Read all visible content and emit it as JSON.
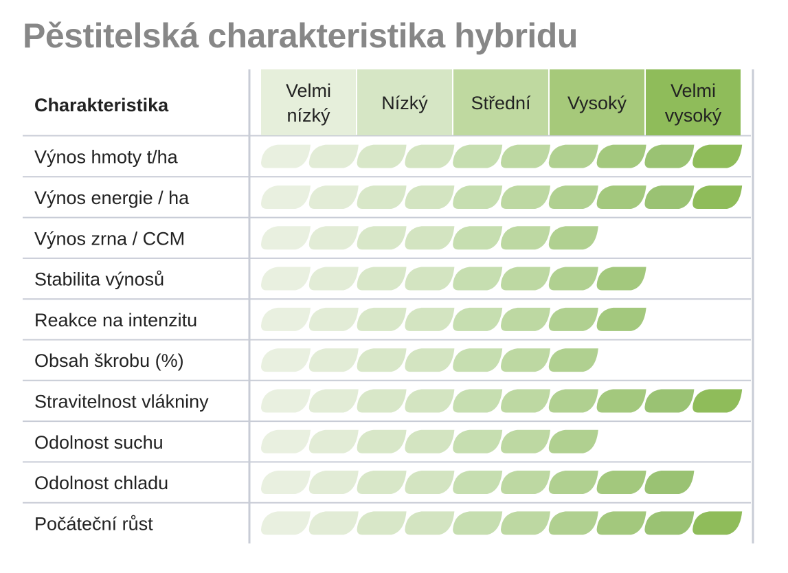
{
  "title": "Pěstitelská charakteristika hybridu",
  "chart_data": {
    "type": "table",
    "row_header": "Charakteristika",
    "levels": [
      {
        "label": "Velmi\nnízký",
        "color": "#e6efdb"
      },
      {
        "label": "Nízký",
        "color": "#d6e6c5"
      },
      {
        "label": "Střední",
        "color": "#bfd9a0"
      },
      {
        "label": "Vysoký",
        "color": "#a6c97a"
      },
      {
        "label": "Velmi\nvysoký",
        "color": "#8fbc5a"
      }
    ],
    "max_score": 10,
    "leaf_colors": [
      "#e9f0e0",
      "#e2ecd6",
      "#d8e7c8",
      "#d3e4c1",
      "#c6deb0",
      "#bdd8a2",
      "#b0d090",
      "#a3c87d",
      "#9ac273",
      "#8fbc5a"
    ],
    "rows": [
      {
        "label": "Výnos hmoty t/ha",
        "value": 10
      },
      {
        "label": "Výnos energie / ha",
        "value": 10
      },
      {
        "label": "Výnos zrna / CCM",
        "value": 7
      },
      {
        "label": "Stabilita výnosů",
        "value": 8
      },
      {
        "label": "Reakce na intenzitu",
        "value": 8
      },
      {
        "label": "Obsah škrobu (%)",
        "value": 7
      },
      {
        "label": "Stravitelnost vlákniny",
        "value": 10
      },
      {
        "label": "Odolnost suchu",
        "value": 7
      },
      {
        "label": "Odolnost chladu",
        "value": 9
      },
      {
        "label": "Počáteční růst",
        "value": 10
      }
    ],
    "colors": {
      "title": "#878787",
      "text": "#222222",
      "divider": "#c8ccd6"
    }
  }
}
